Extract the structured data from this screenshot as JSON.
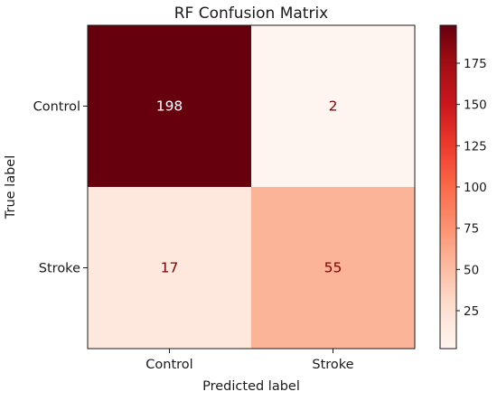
{
  "chart_data": {
    "type": "heatmap",
    "title": "RF Confusion Matrix",
    "xlabel": "Predicted label",
    "ylabel": "True label",
    "x_categories": [
      "Control",
      "Stroke"
    ],
    "y_categories": [
      "Control",
      "Stroke"
    ],
    "values": [
      [
        198,
        2
      ],
      [
        17,
        55
      ]
    ],
    "colormap": "Reds",
    "colorbar": {
      "range": [
        2,
        198
      ],
      "ticks": [
        25,
        50,
        75,
        100,
        125,
        150,
        175
      ],
      "tick_labels": [
        "25",
        "50",
        "75",
        "100",
        "125",
        "150",
        "175"
      ]
    },
    "text_colors": {
      "on_dark": "#ffffff",
      "on_light": "#7f0000"
    },
    "grid": false
  }
}
